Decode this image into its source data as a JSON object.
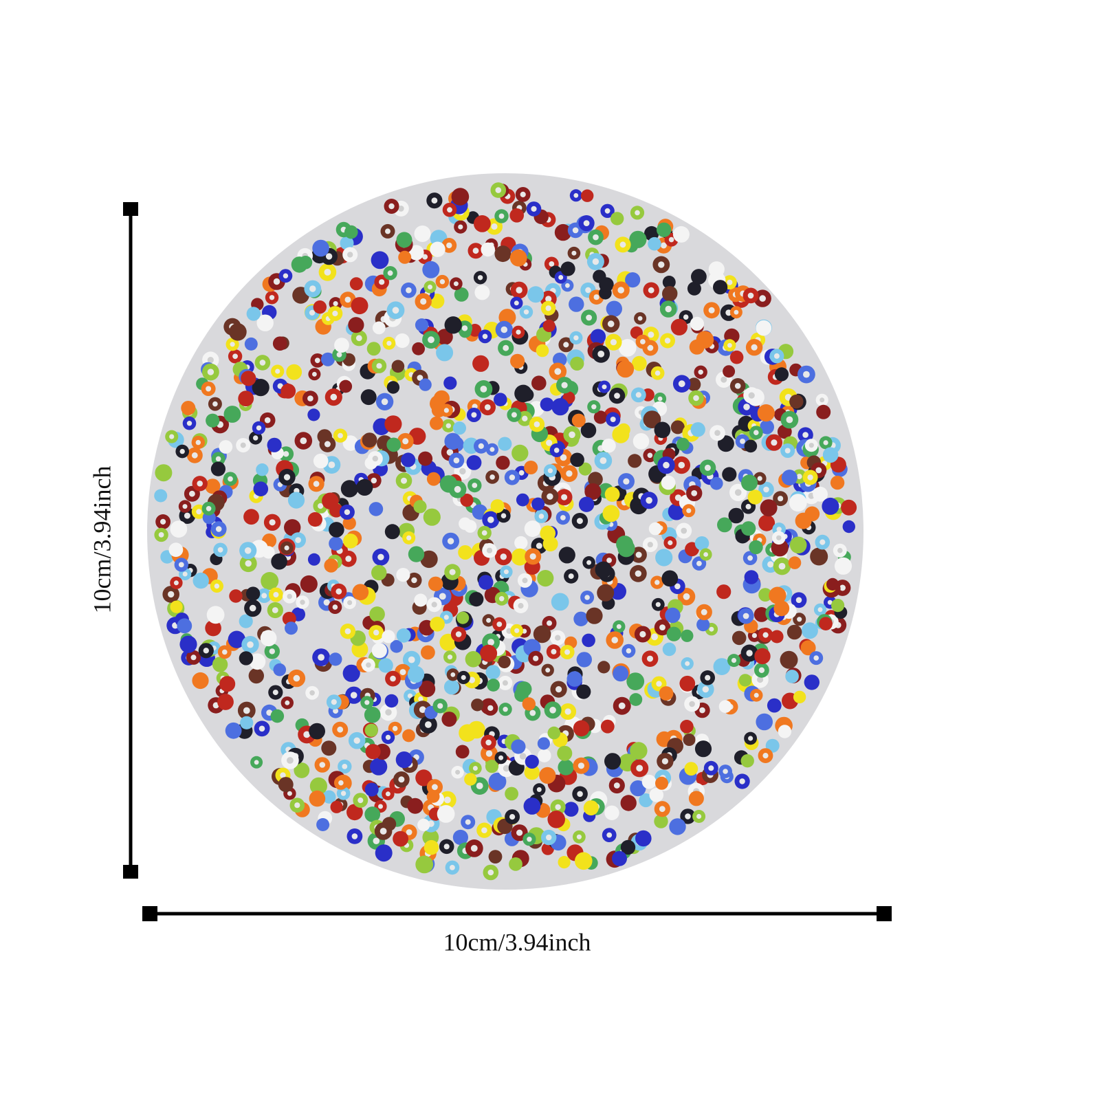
{
  "dimensions": {
    "height_label": "10cm/3.94inch",
    "width_label": "10cm/3.94inch"
  }
}
